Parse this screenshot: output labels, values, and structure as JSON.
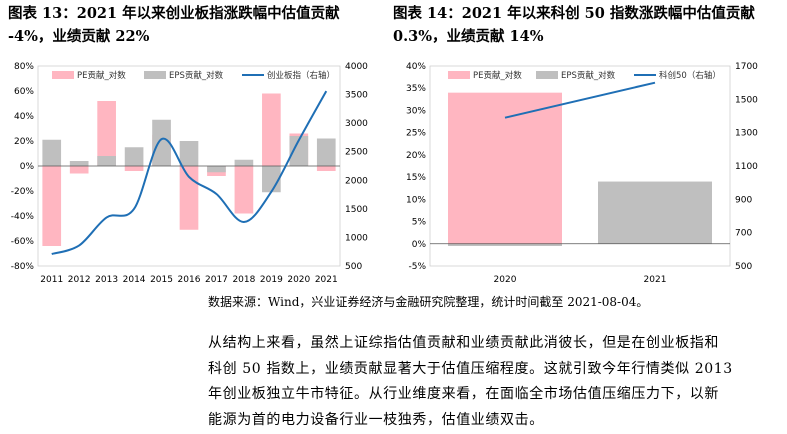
{
  "figure13": {
    "title_line1": "图表 13：2021 年以来创业板指涨跌幅中估值贡献",
    "title_line2": "-4%，业绩贡献 22%",
    "chart_data": {
      "type": "bar",
      "categories": [
        "2011",
        "2012",
        "2013",
        "2014",
        "2015",
        "2016",
        "2017",
        "2018",
        "2019",
        "2020",
        "2021"
      ],
      "series": [
        {
          "name": "PE贡献_对数",
          "kind": "bar",
          "color": "#ffb6c1",
          "values": [
            -64,
            -6,
            52,
            -4,
            25,
            -51,
            -8,
            -38,
            58,
            26,
            -4
          ]
        },
        {
          "name": "EPS贡献_对数",
          "kind": "bar",
          "color": "#bfbfbf",
          "values": [
            21,
            4,
            8,
            15,
            37,
            20,
            -5,
            5,
            -21,
            24,
            22
          ]
        },
        {
          "name": "创业板指（右轴）",
          "kind": "line",
          "axis": "right",
          "color": "#1f6fb5",
          "values": [
            710,
            860,
            1350,
            1500,
            2720,
            2060,
            1760,
            1270,
            1800,
            2700,
            3560
          ]
        }
      ],
      "yticks_left": [
        "80%",
        "60%",
        "40%",
        "20%",
        "0%",
        "-20%",
        "-40%",
        "-60%",
        "-80%"
      ],
      "ylim_left": [
        -80,
        80
      ],
      "yticks_right": [
        "4000",
        "3500",
        "3000",
        "2500",
        "2000",
        "1500",
        "1000",
        "500"
      ],
      "ylim_right": [
        500,
        4000
      ],
      "legend": "top"
    }
  },
  "figure14": {
    "title_line1": "图表 14：2021 年以来科创 50 指数涨跌幅中估值贡献",
    "title_line2": "0.3%，业绩贡献 14%",
    "chart_data": {
      "type": "bar",
      "categories": [
        "2020",
        "2021"
      ],
      "series": [
        {
          "name": "PE贡献_对数",
          "kind": "bar",
          "color": "#ffb6c1",
          "values": [
            34,
            0.3
          ]
        },
        {
          "name": "EPS贡献_对数",
          "kind": "bar",
          "color": "#bfbfbf",
          "values": [
            -0.5,
            14
          ]
        },
        {
          "name": "科创50（右轴）",
          "kind": "line",
          "axis": "right",
          "color": "#1f6fb5",
          "values": [
            1390,
            1600
          ]
        }
      ],
      "yticks_left": [
        "40%",
        "35%",
        "30%",
        "25%",
        "20%",
        "15%",
        "10%",
        "5%",
        "0%",
        "-5%"
      ],
      "ylim_left": [
        -5,
        40
      ],
      "yticks_right": [
        "1700",
        "1500",
        "1300",
        "1100",
        "900",
        "700",
        "500"
      ],
      "ylim_right": [
        500,
        1700
      ],
      "legend": "top"
    }
  },
  "source": "数据来源：Wind，兴业证券经济与金融研究院整理，统计时间截至 2021-08-04。",
  "paragraph": [
    "从结构上来看，虽然上证综指估值贡献和业绩贡献此消彼长，但是在创业板指和",
    "科创 50 指数上，业绩贡献显著大于估值压缩程度。这就引致今年行情类似 2013",
    "年创业板独立牛市特征。从行业维度来看，在面临全市场估值压缩压力下，以新",
    "能源为首的电力设备行业一枝独秀，估值业绩双击。"
  ]
}
